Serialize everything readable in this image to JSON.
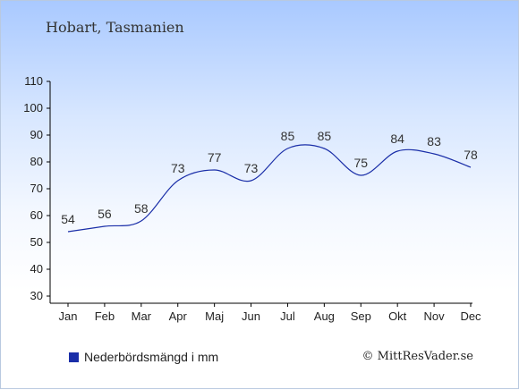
{
  "header": {
    "title": "Hobart, Tasmanien"
  },
  "legend": {
    "label": "Nederbördsmängd i mm",
    "color": "#1a2ea8"
  },
  "credit": "© MittResVader.se",
  "chart_data": {
    "type": "line",
    "categories": [
      "Jan",
      "Feb",
      "Mar",
      "Apr",
      "Maj",
      "Jun",
      "Jul",
      "Aug",
      "Sep",
      "Okt",
      "Nov",
      "Dec"
    ],
    "series": [
      {
        "values": [
          54,
          56,
          58,
          73,
          77,
          73,
          85,
          85,
          75,
          84,
          83,
          78
        ]
      }
    ],
    "ylim": [
      30,
      110
    ],
    "yticks": [
      30,
      40,
      50,
      60,
      70,
      80,
      90,
      100,
      110
    ],
    "title": "Hobart, Tasmanien",
    "xlabel": "",
    "ylabel": "",
    "line_color": "#1a2ea8",
    "grid": false,
    "legend_position": "bottom-left"
  }
}
